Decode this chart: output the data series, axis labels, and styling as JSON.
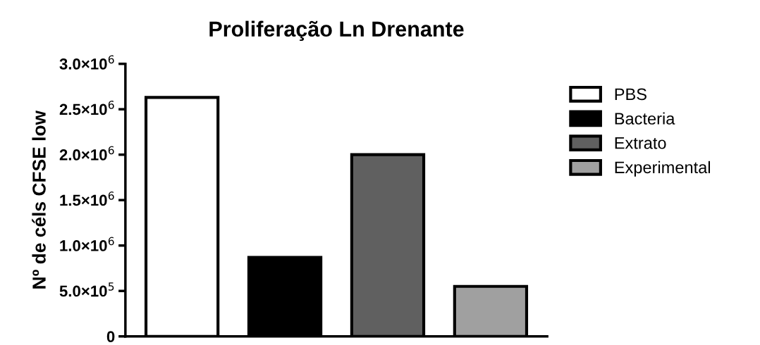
{
  "chart_data": {
    "type": "bar",
    "title": "Proliferação Ln Drenante",
    "ylabel": "Nº de céls CFSE low",
    "categories": [
      null,
      null,
      null,
      null
    ],
    "series": [
      {
        "name": "PBS",
        "color": "#ffffff",
        "values": [
          2630000,
          null,
          null,
          null
        ]
      },
      {
        "name": "Bacteria",
        "color": "#000000",
        "values": [
          null,
          870000,
          null,
          null
        ]
      },
      {
        "name": "Extrato",
        "color": "#606060",
        "values": [
          null,
          null,
          2000000,
          null
        ]
      },
      {
        "name": "Experimental",
        "color": "#a0a0a0",
        "values": [
          null,
          null,
          null,
          550000
        ]
      }
    ],
    "ylim": [
      0,
      3000000
    ],
    "yticks": [
      0,
      {
        "value": 500000,
        "label": "5.0×10$^{5}$"
      },
      {
        "value": 1000000,
        "label": "1.0×10$^{6}$"
      },
      {
        "value": 1500000,
        "label": "1.5×10$^{6}$"
      },
      {
        "value": 2000000,
        "label": "2.0×10$^{6}$"
      },
      {
        "value": 2500000,
        "label": "2.5×10$^{6}$"
      },
      {
        "value": 3000000,
        "label": "3.0×10$^{6}$"
      }
    ],
    "tick_labels": "y",
    "grid": false,
    "legend": "right"
  }
}
